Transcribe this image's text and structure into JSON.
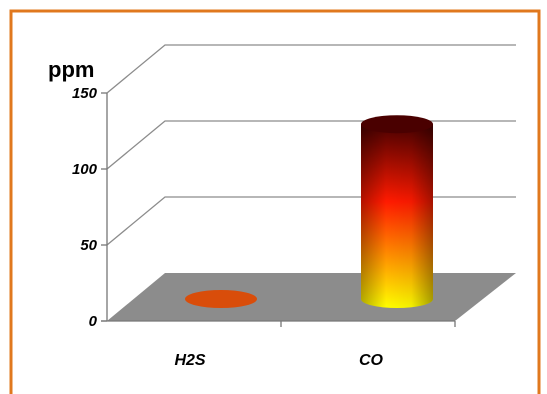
{
  "chart_data": {
    "type": "bar",
    "style": "3d-cylinder",
    "ylabel": "ppm",
    "categories": [
      "H2S",
      "CO"
    ],
    "values": [
      0,
      115
    ],
    "ylim": [
      0,
      150
    ],
    "yticks": [
      "0",
      "50",
      "100",
      "150"
    ],
    "grid": true,
    "legend": "none"
  },
  "colors": {
    "frame_border": "#e0781e",
    "floor": "#8c8c8c",
    "grid": "#8c8c8c",
    "h2s_disc": "#d94d0a",
    "co_top": "#4a0000",
    "co_mid": "#ff1a00",
    "co_bottom": "#ffff00"
  }
}
